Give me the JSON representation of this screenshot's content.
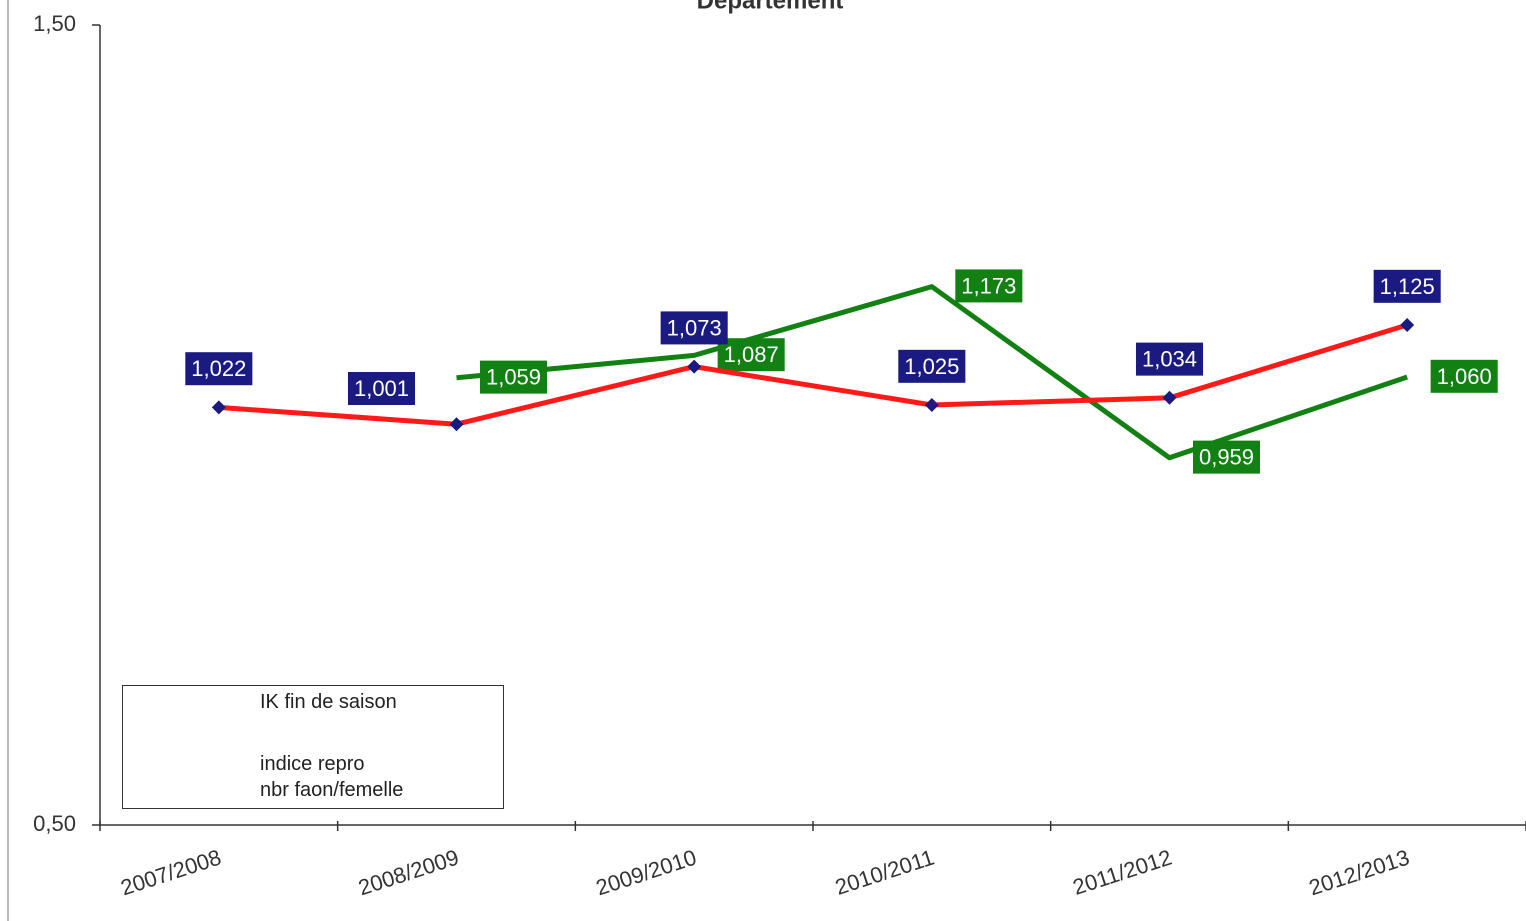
{
  "chart_data": {
    "type": "line",
    "title": "Departement",
    "categories": [
      "2007/2008",
      "2008/2009",
      "2009/2010",
      "2010/2011",
      "2011/2012",
      "2012/2013"
    ],
    "ylim": [
      0.5,
      1.5
    ],
    "yticks": [
      {
        "value": 0.5,
        "label": "0,50"
      },
      {
        "value": 1.5,
        "label": "1,50"
      }
    ],
    "series": [
      {
        "name": "IK fin de saison",
        "color": "#128012",
        "values": [
          null,
          1.059,
          1.087,
          1.173,
          0.959,
          1.06
        ],
        "value_labels": [
          null,
          "1,059",
          "1,087",
          "1,173",
          "0,959",
          "1,060"
        ]
      },
      {
        "name": "indice repro\nnbr faon/femelle",
        "color": "#ff1a1a",
        "marker_color": "#1a1a80",
        "values": [
          1.022,
          1.001,
          1.073,
          1.025,
          1.034,
          1.125
        ],
        "value_labels": [
          "1,022",
          "1,001",
          "1,073",
          "1,025",
          "1,034",
          "1,125"
        ]
      }
    ],
    "legend": "lower left"
  }
}
